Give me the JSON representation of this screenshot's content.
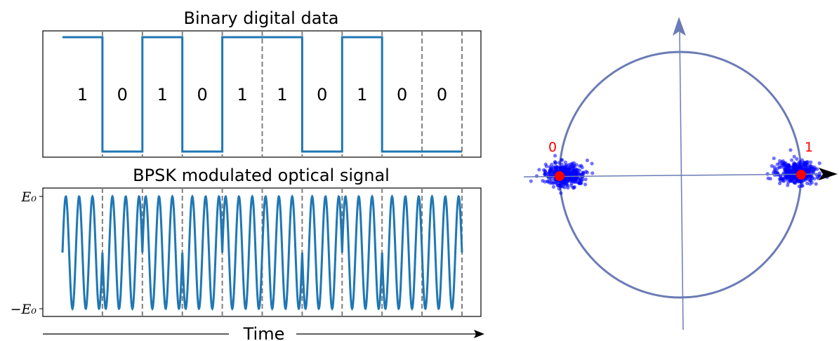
{
  "left": {
    "top_title": "Binary digital data",
    "bottom_title": "BPSK modulated optical signal",
    "bits": [
      "1",
      "0",
      "1",
      "0",
      "1",
      "1",
      "0",
      "1",
      "0",
      "0"
    ],
    "ytick_top": "E₀",
    "ytick_bottom": "−E₀",
    "time_label": "Time",
    "carrier_cycles_per_bit": 3,
    "line_color": "#1f77b4",
    "divider_color": "#808080"
  },
  "constellation": {
    "labels": {
      "zero": "0",
      "one": "1"
    },
    "circle_color": "#6b7bb6",
    "point_color": "#ff0000",
    "noise_color": "#0000ff",
    "arrow_color": "#000000"
  }
}
